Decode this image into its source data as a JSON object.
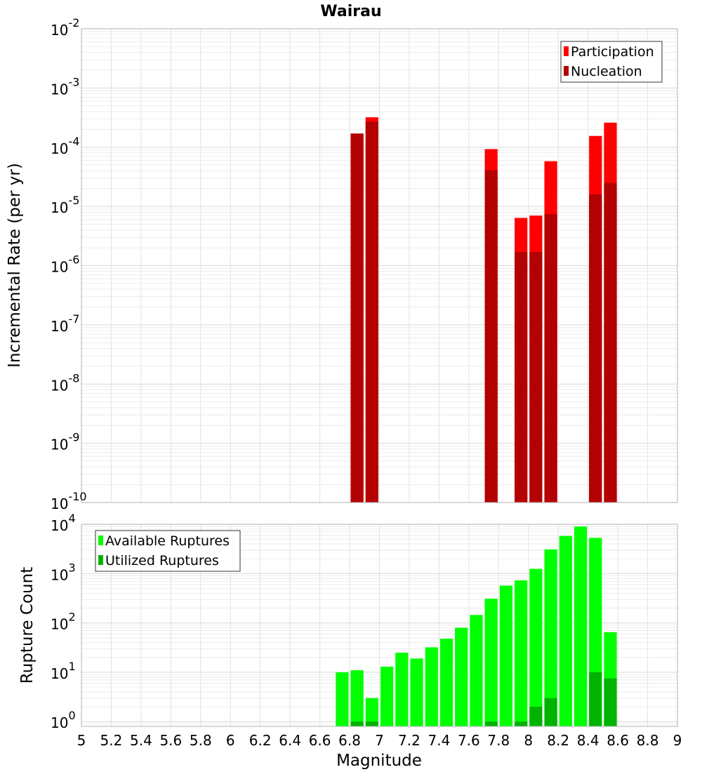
{
  "chart_data": [
    {
      "type": "bar",
      "title": "Wairau",
      "xlabel": "",
      "ylabel": "Incremental Rate (per yr)",
      "yscale": "log",
      "ylim": [
        1e-10,
        0.01
      ],
      "xlim": [
        5,
        9
      ],
      "bar_width": 0.1,
      "x": [
        6.85,
        6.95,
        7.75,
        7.95,
        8.05,
        8.15,
        8.45,
        8.55
      ],
      "series": [
        {
          "name": "Participation",
          "color": "#ff0000",
          "values": [
            0.00017,
            0.00032,
            9.3e-05,
            6.4e-06,
            7e-06,
            5.8e-05,
            0.000155,
            0.00026
          ]
        },
        {
          "name": "Nucleation",
          "color": "#b30000",
          "values": [
            0.00017,
            0.00027,
            4.1e-05,
            1.7e-06,
            1.7e-06,
            7.4e-06,
            1.6e-05,
            2.5e-05
          ]
        }
      ],
      "yticks": [
        {
          "base": "10",
          "exp": "-2"
        },
        {
          "base": "10",
          "exp": "-3"
        },
        {
          "base": "10",
          "exp": "-4"
        },
        {
          "base": "10",
          "exp": "-5"
        },
        {
          "base": "10",
          "exp": "-6"
        },
        {
          "base": "10",
          "exp": "-7"
        },
        {
          "base": "10",
          "exp": "-8"
        },
        {
          "base": "10",
          "exp": "-9"
        },
        {
          "base": "10",
          "exp": "-10"
        }
      ],
      "legend_position": "top-right",
      "grid": true
    },
    {
      "type": "bar",
      "title": "",
      "xlabel": "Magnitude",
      "ylabel": "Rupture Count",
      "yscale": "log",
      "ylim": [
        0.8,
        10000
      ],
      "xlim": [
        5,
        9
      ],
      "bar_width": 0.1,
      "x": [
        6.75,
        6.85,
        6.95,
        7.05,
        7.15,
        7.25,
        7.35,
        7.45,
        7.55,
        7.65,
        7.75,
        7.85,
        7.95,
        8.05,
        8.15,
        8.25,
        8.35,
        8.45,
        8.55
      ],
      "series": [
        {
          "name": "Available Ruptures",
          "color": "#00ff00",
          "values": [
            10,
            11,
            3,
            13,
            25,
            19,
            32,
            48,
            80,
            145,
            310,
            570,
            730,
            1250,
            3100,
            5800,
            9000,
            5300,
            65
          ]
        },
        {
          "name": "Utilized Ruptures",
          "color": "#00b300",
          "values": [
            0,
            1,
            1,
            0,
            0,
            0,
            0,
            0,
            0,
            0,
            1,
            0,
            1,
            2,
            3,
            0,
            0,
            10,
            7.5
          ]
        }
      ],
      "yticks": [
        {
          "base": "10",
          "exp": "4"
        },
        {
          "base": "10",
          "exp": "3"
        },
        {
          "base": "10",
          "exp": "2"
        },
        {
          "base": "10",
          "exp": "1"
        },
        {
          "base": "10",
          "exp": "0"
        }
      ],
      "xticks": [
        "5",
        "5.2",
        "5.4",
        "5.6",
        "5.8",
        "6",
        "6.2",
        "6.4",
        "6.6",
        "6.8",
        "7",
        "7.2",
        "7.4",
        "7.6",
        "7.8",
        "8",
        "8.2",
        "8.4",
        "8.6",
        "8.8",
        "9"
      ],
      "legend_position": "top-left",
      "grid": true
    }
  ]
}
